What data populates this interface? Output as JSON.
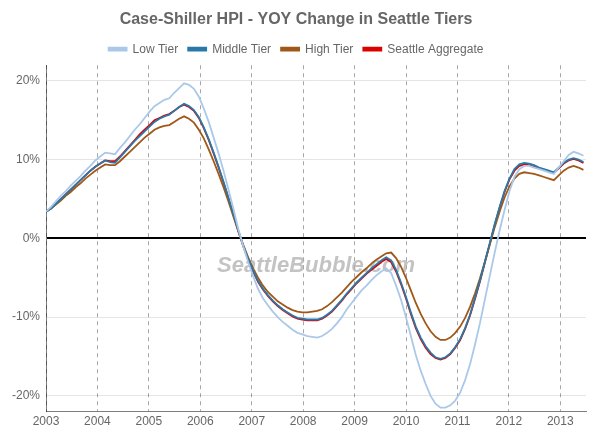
{
  "chart_data": {
    "type": "line",
    "title": "Case-Shiller HPI - YOY Change in Seattle Tiers",
    "annotations": [
      "SeattleBubble.com"
    ],
    "x": [
      2003,
      2003.0959,
      2003.1917,
      2003.2876,
      2003.3835,
      2003.4794,
      2003.5752,
      2003.6711,
      2003.767,
      2003.8628,
      2003.9587,
      2004.0546,
      2004.1505,
      2004.2463,
      2004.3422,
      2004.4381,
      2004.5339,
      2004.6298,
      2004.7257,
      2004.8216,
      2004.9174,
      2005.0133,
      2005.1092,
      2005.205,
      2005.3009,
      2005.3968,
      2005.4927,
      2005.5885,
      2005.6844,
      2005.7803,
      2005.8761,
      2005.972,
      2006.0679,
      2006.1638,
      2006.2596,
      2006.3555,
      2006.4514,
      2006.5472,
      2006.6431,
      2006.739,
      2006.8349,
      2006.9307,
      2007.0266,
      2007.1225,
      2007.2183,
      2007.3142,
      2007.4101,
      2007.506,
      2007.6018,
      2007.6977,
      2007.7936,
      2007.8894,
      2007.9853,
      2008.0812,
      2008.1771,
      2008.2729,
      2008.3688,
      2008.4647,
      2008.5606,
      2008.6564,
      2008.7523,
      2008.8482,
      2008.944,
      2009.0399,
      2009.1358,
      2009.2317,
      2009.3275,
      2009.4234,
      2009.5193,
      2009.6151,
      2009.711,
      2009.8069,
      2009.9028,
      2009.9986,
      2010.0945,
      2010.1904,
      2010.2862,
      2010.3821,
      2010.478,
      2010.5739,
      2010.6697,
      2010.7656,
      2010.8615,
      2010.9573,
      2011.0532,
      2011.1491,
      2011.245,
      2011.3408,
      2011.4367,
      2011.5326,
      2011.6284,
      2011.7243,
      2011.8202,
      2011.9161,
      2012.0119,
      2012.1078,
      2012.2037,
      2012.2995,
      2012.3954,
      2012.4913,
      2012.5872,
      2012.683,
      2012.7789,
      2012.8748,
      2012.9706,
      2013.0665,
      2013.1624,
      2013.2583,
      2013.3541,
      2013.45
    ],
    "series": [
      {
        "name": "Low Tier",
        "color": "#aac8e8",
        "values": [
          0.034,
          0.04,
          0.047,
          0.054,
          0.06,
          0.067,
          0.073,
          0.079,
          0.086,
          0.092,
          0.099,
          0.104,
          0.109,
          0.108,
          0.107,
          0.115,
          0.122,
          0.13,
          0.138,
          0.145,
          0.153,
          0.161,
          0.168,
          0.172,
          0.176,
          0.178,
          0.185,
          0.191,
          0.197,
          0.195,
          0.19,
          0.18,
          0.165,
          0.148,
          0.128,
          0.108,
          0.086,
          0.062,
          0.038,
          0.012,
          -0.01,
          -0.03,
          -0.048,
          -0.064,
          -0.076,
          -0.085,
          -0.093,
          -0.1,
          -0.106,
          -0.111,
          -0.116,
          -0.12,
          -0.122,
          -0.124,
          -0.125,
          -0.126,
          -0.124,
          -0.12,
          -0.115,
          -0.108,
          -0.1,
          -0.09,
          -0.082,
          -0.074,
          -0.066,
          -0.06,
          -0.053,
          -0.047,
          -0.042,
          -0.038,
          -0.044,
          -0.06,
          -0.078,
          -0.1,
          -0.124,
          -0.148,
          -0.168,
          -0.185,
          -0.2,
          -0.21,
          -0.215,
          -0.215,
          -0.212,
          -0.206,
          -0.196,
          -0.18,
          -0.16,
          -0.135,
          -0.108,
          -0.078,
          -0.048,
          -0.018,
          0.01,
          0.036,
          0.06,
          0.078,
          0.088,
          0.092,
          0.092,
          0.09,
          0.088,
          0.086,
          0.084,
          0.082,
          0.09,
          0.098,
          0.106,
          0.11,
          0.108,
          0.105
        ]
      },
      {
        "name": "Middle Tier",
        "color": "#2878a8",
        "values": [
          0.034,
          0.038,
          0.044,
          0.05,
          0.056,
          0.062,
          0.068,
          0.074,
          0.08,
          0.086,
          0.091,
          0.095,
          0.099,
          0.097,
          0.096,
          0.103,
          0.11,
          0.117,
          0.124,
          0.13,
          0.136,
          0.142,
          0.148,
          0.152,
          0.155,
          0.157,
          0.162,
          0.167,
          0.171,
          0.168,
          0.163,
          0.154,
          0.141,
          0.126,
          0.109,
          0.091,
          0.072,
          0.052,
          0.031,
          0.01,
          -0.009,
          -0.026,
          -0.041,
          -0.054,
          -0.064,
          -0.072,
          -0.079,
          -0.085,
          -0.09,
          -0.094,
          -0.098,
          -0.101,
          -0.102,
          -0.103,
          -0.103,
          -0.103,
          -0.101,
          -0.097,
          -0.092,
          -0.085,
          -0.078,
          -0.07,
          -0.063,
          -0.056,
          -0.05,
          -0.044,
          -0.038,
          -0.033,
          -0.028,
          -0.024,
          -0.028,
          -0.04,
          -0.056,
          -0.074,
          -0.094,
          -0.112,
          -0.126,
          -0.137,
          -0.145,
          -0.151,
          -0.153,
          -0.151,
          -0.146,
          -0.138,
          -0.128,
          -0.114,
          -0.097,
          -0.076,
          -0.054,
          -0.03,
          -0.006,
          0.018,
          0.04,
          0.06,
          0.076,
          0.088,
          0.094,
          0.096,
          0.095,
          0.093,
          0.09,
          0.088,
          0.086,
          0.084,
          0.09,
          0.096,
          0.1,
          0.102,
          0.1,
          0.097
        ]
      },
      {
        "name": "High Tier",
        "color": "#a05818",
        "values": [
          0.034,
          0.038,
          0.043,
          0.048,
          0.054,
          0.059,
          0.065,
          0.07,
          0.076,
          0.081,
          0.086,
          0.09,
          0.094,
          0.093,
          0.093,
          0.098,
          0.104,
          0.11,
          0.116,
          0.122,
          0.128,
          0.133,
          0.138,
          0.141,
          0.143,
          0.144,
          0.148,
          0.152,
          0.155,
          0.152,
          0.147,
          0.138,
          0.127,
          0.113,
          0.098,
          0.082,
          0.065,
          0.047,
          0.028,
          0.009,
          -0.008,
          -0.024,
          -0.038,
          -0.05,
          -0.06,
          -0.068,
          -0.074,
          -0.08,
          -0.084,
          -0.088,
          -0.091,
          -0.093,
          -0.094,
          -0.094,
          -0.093,
          -0.092,
          -0.09,
          -0.086,
          -0.081,
          -0.075,
          -0.069,
          -0.062,
          -0.055,
          -0.049,
          -0.043,
          -0.038,
          -0.032,
          -0.027,
          -0.023,
          -0.019,
          -0.018,
          -0.025,
          -0.036,
          -0.05,
          -0.066,
          -0.082,
          -0.096,
          -0.108,
          -0.118,
          -0.125,
          -0.129,
          -0.129,
          -0.126,
          -0.12,
          -0.112,
          -0.101,
          -0.087,
          -0.07,
          -0.051,
          -0.03,
          -0.008,
          0.014,
          0.034,
          0.052,
          0.066,
          0.076,
          0.082,
          0.084,
          0.083,
          0.082,
          0.08,
          0.078,
          0.076,
          0.074,
          0.08,
          0.086,
          0.09,
          0.092,
          0.09,
          0.087
        ]
      },
      {
        "name": "Seattle Aggregate",
        "color": "#dd0000",
        "values": [
          0.034,
          0.038,
          0.044,
          0.05,
          0.056,
          0.062,
          0.068,
          0.074,
          0.08,
          0.086,
          0.091,
          0.095,
          0.099,
          0.098,
          0.098,
          0.104,
          0.111,
          0.118,
          0.125,
          0.132,
          0.138,
          0.144,
          0.15,
          0.153,
          0.156,
          0.158,
          0.162,
          0.167,
          0.17,
          0.167,
          0.162,
          0.153,
          0.14,
          0.125,
          0.108,
          0.09,
          0.071,
          0.051,
          0.03,
          0.009,
          -0.01,
          -0.027,
          -0.042,
          -0.055,
          -0.065,
          -0.073,
          -0.08,
          -0.086,
          -0.091,
          -0.095,
          -0.099,
          -0.102,
          -0.103,
          -0.104,
          -0.104,
          -0.104,
          -0.102,
          -0.098,
          -0.093,
          -0.086,
          -0.079,
          -0.071,
          -0.064,
          -0.057,
          -0.051,
          -0.045,
          -0.04,
          -0.035,
          -0.03,
          -0.026,
          -0.03,
          -0.042,
          -0.058,
          -0.076,
          -0.096,
          -0.114,
          -0.128,
          -0.139,
          -0.147,
          -0.152,
          -0.154,
          -0.152,
          -0.147,
          -0.139,
          -0.129,
          -0.115,
          -0.098,
          -0.077,
          -0.055,
          -0.031,
          -0.007,
          0.017,
          0.039,
          0.059,
          0.075,
          0.086,
          0.092,
          0.094,
          0.093,
          0.091,
          0.089,
          0.087,
          0.085,
          0.083,
          0.089,
          0.095,
          0.099,
          0.101,
          0.099,
          0.096
        ]
      }
    ],
    "xlim": [
      2003.0,
      2013.5
    ],
    "xticks": [
      2003,
      2004,
      2005,
      2006,
      2007,
      2008,
      2009,
      2010,
      2011,
      2012,
      2013
    ],
    "ylim": [
      -0.22,
      0.22
    ],
    "yticks": [
      {
        "value": -0.2,
        "label": "-20%"
      },
      {
        "value": -0.1,
        "label": "-10%"
      },
      {
        "value": 0,
        "label": "0%"
      },
      {
        "value": 0.1,
        "label": "10%"
      },
      {
        "value": 0.2,
        "label": "20%"
      }
    ],
    "grid": true,
    "legend": "top"
  }
}
